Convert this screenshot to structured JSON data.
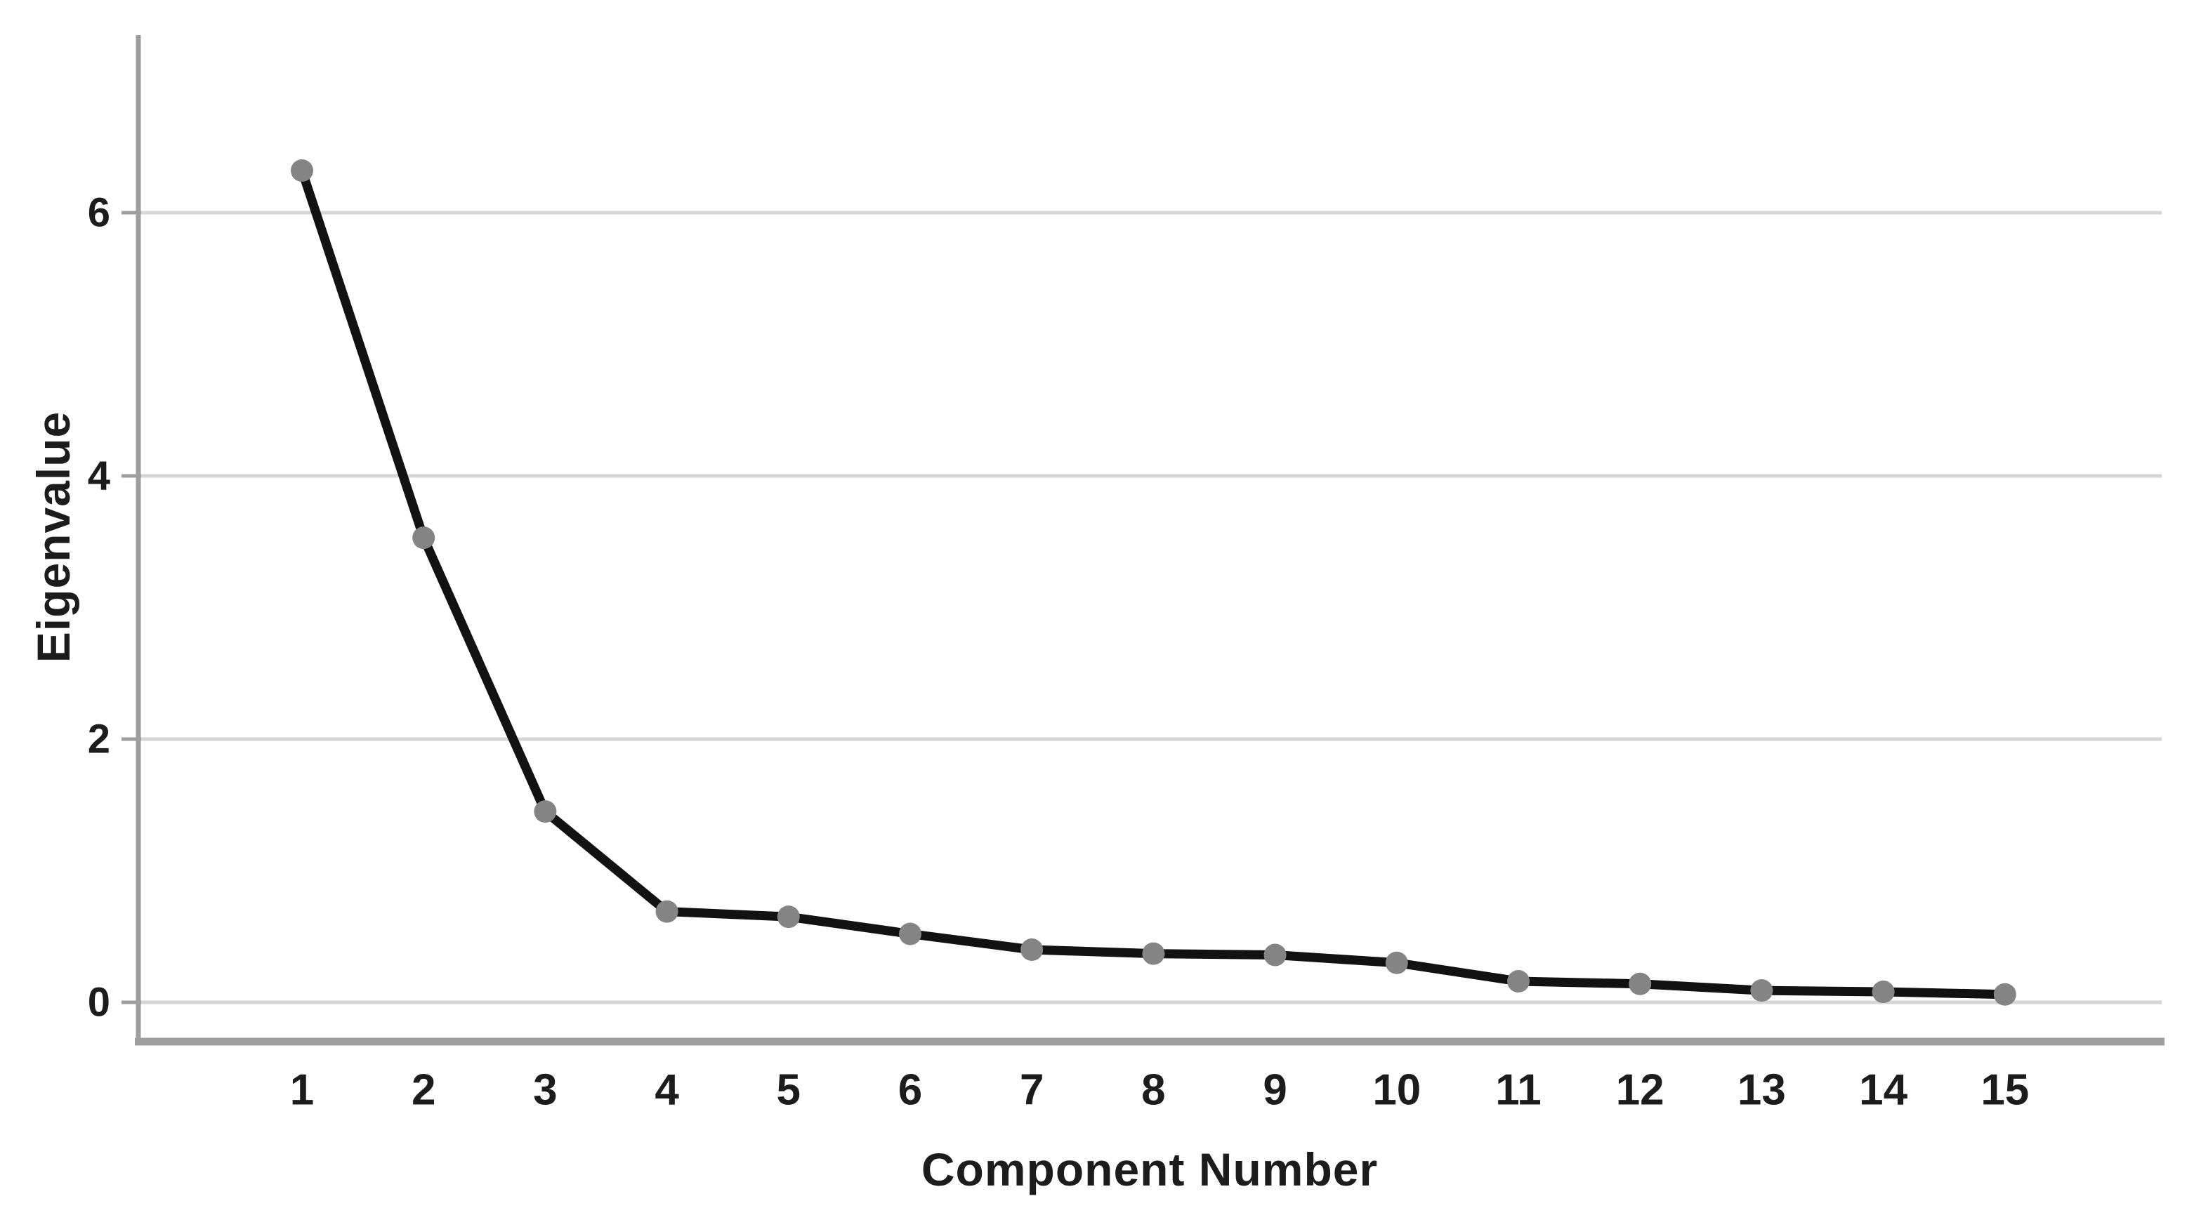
{
  "chart_data": {
    "type": "line",
    "title": "",
    "xlabel": "Component Number",
    "ylabel": "Eigenvalue",
    "x": [
      1,
      2,
      3,
      4,
      5,
      6,
      7,
      8,
      9,
      10,
      11,
      12,
      13,
      14,
      15
    ],
    "series": [
      {
        "name": "Eigenvalue",
        "values": [
          6.32,
          3.53,
          1.45,
          0.69,
          0.65,
          0.52,
          0.4,
          0.37,
          0.36,
          0.3,
          0.16,
          0.14,
          0.09,
          0.08,
          0.06
        ]
      }
    ],
    "x_tick_labels": [
      "1",
      "2",
      "3",
      "4",
      "5",
      "6",
      "7",
      "8",
      "9",
      "10",
      "11",
      "12",
      "13",
      "14",
      "15"
    ],
    "y_ticks": [
      0,
      2,
      4,
      6
    ],
    "y_tick_labels": [
      "0",
      "2",
      "4",
      "6"
    ],
    "ylim": [
      -0.3,
      7.35
    ],
    "grid": "horizontal-only",
    "legend_position": "none",
    "colors": {
      "line": "#121212",
      "marker": "#848484",
      "gridline": "#d6d6d6",
      "axis": "#9e9e9e",
      "text": "#1c1c1c",
      "background": "#ffffff"
    }
  }
}
